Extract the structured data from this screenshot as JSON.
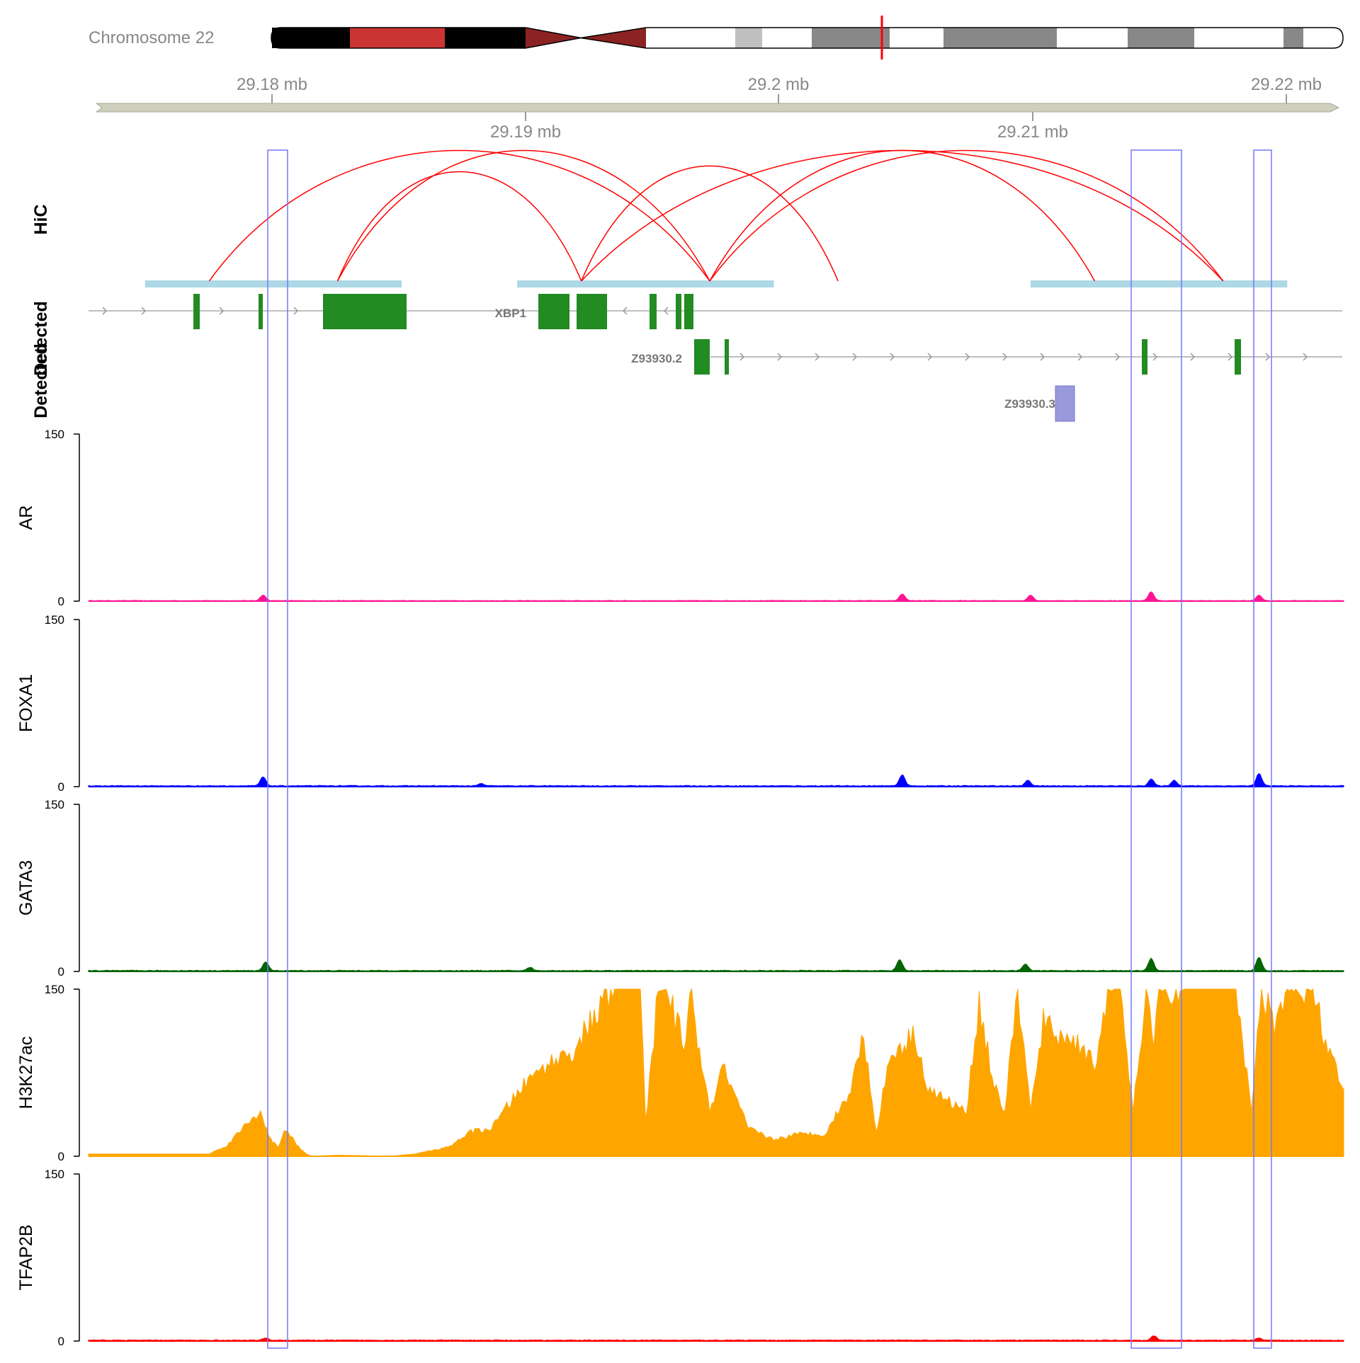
{
  "ideogram": {
    "label": "Chromosome 22",
    "colors": {
      "acen": "#8B2323",
      "gneg": "#ffffff",
      "gpos25": "#c0c0c0",
      "gpos50": "#888888",
      "gvar": "#000000",
      "stalk": "#cc3333",
      "marker": "#ff0000"
    }
  },
  "axis": {
    "top_ticks": [
      "29.18 mb",
      "29.2 mb",
      "29.22 mb"
    ],
    "bottom_ticks": [
      "29.19 mb",
      "29.21 mb"
    ],
    "top_tick_values": [
      29.18,
      29.2,
      29.22
    ],
    "bottom_tick_values": [
      29.19,
      29.21
    ],
    "range_mb": [
      29.1733,
      29.2222
    ],
    "color": "#c8c8b4"
  },
  "tracks": {
    "hic_label": "HiC",
    "genes_label": "Detected",
    "genes_label_overlap": "Detected",
    "genes": [
      {
        "name": "XBP1",
        "strand": "-",
        "color": "#228B22"
      },
      {
        "name": "Z93930.2",
        "strand": "+",
        "color": "#228B22"
      },
      {
        "name": "Z93930.3",
        "strand": "+",
        "color": "#9999dd"
      }
    ]
  },
  "chart_data": [
    {
      "type": "arc",
      "title": "HiC",
      "anchors_mb": [
        [
          29.1755,
          29.1855
        ],
        [
          29.19,
          29.2
        ],
        [
          29.21,
          29.22
        ]
      ],
      "links_mb": [
        [
          29.178,
          29.1975
        ],
        [
          29.183,
          29.1925
        ],
        [
          29.183,
          29.1975
        ],
        [
          29.1925,
          29.2025
        ],
        [
          29.1975,
          29.2125
        ],
        [
          29.1975,
          29.2175
        ],
        [
          29.1925,
          29.2175
        ]
      ],
      "arc_color": "#ff0000",
      "anchor_color": "#add8e6"
    },
    {
      "type": "area",
      "title": "AR",
      "ylim": [
        0,
        150
      ],
      "yticks": [
        0,
        150
      ],
      "color": "#ff1493",
      "baseline": 0.5,
      "peaks": [
        {
          "x": 29.1801,
          "y": 5
        },
        {
          "x": 29.205,
          "y": 6
        },
        {
          "x": 29.21,
          "y": 5
        },
        {
          "x": 29.2147,
          "y": 8
        },
        {
          "x": 29.2189,
          "y": 5
        }
      ]
    },
    {
      "type": "area",
      "title": "FOXA1",
      "ylim": [
        0,
        150
      ],
      "yticks": [
        0,
        150
      ],
      "color": "#0000ff",
      "baseline": 0.8,
      "peaks": [
        {
          "x": 29.1801,
          "y": 8
        },
        {
          "x": 29.1886,
          "y": 2
        },
        {
          "x": 29.205,
          "y": 10
        },
        {
          "x": 29.2099,
          "y": 5
        },
        {
          "x": 29.2147,
          "y": 6
        },
        {
          "x": 29.2156,
          "y": 5
        },
        {
          "x": 29.2189,
          "y": 11
        }
      ]
    },
    {
      "type": "area",
      "title": "GATA3",
      "ylim": [
        0,
        150
      ],
      "yticks": [
        0,
        150
      ],
      "color": "#006400",
      "baseline": 0.8,
      "peaks": [
        {
          "x": 29.1802,
          "y": 8
        },
        {
          "x": 29.1905,
          "y": 3
        },
        {
          "x": 29.2049,
          "y": 10
        },
        {
          "x": 29.2098,
          "y": 6
        },
        {
          "x": 29.2147,
          "y": 11
        },
        {
          "x": 29.2189,
          "y": 12
        }
      ]
    },
    {
      "type": "area",
      "title": "H3K27ac",
      "ylim": [
        0,
        150
      ],
      "yticks": [
        0,
        150
      ],
      "color": "#ffa500",
      "x": [
        29.1733,
        29.178,
        29.1787,
        29.1795,
        29.18,
        29.1804,
        29.1807,
        29.181,
        29.1814,
        29.1818,
        29.182,
        29.183,
        29.185,
        29.186,
        29.1873,
        29.1882,
        29.189,
        29.1901,
        29.191,
        29.1922,
        29.193,
        29.1938,
        29.1948,
        29.195,
        29.1955,
        29.1958,
        29.1965,
        29.1968,
        29.1971,
        29.1975,
        29.198,
        29.199,
        29.2,
        29.201,
        29.202,
        29.203,
        29.2035,
        29.204,
        29.2045,
        29.205,
        29.2055,
        29.206,
        29.2075,
        29.208,
        29.2085,
        29.209,
        29.2095,
        29.21,
        29.2105,
        29.211,
        29.212,
        29.2125,
        29.213,
        29.2135,
        29.214,
        29.2145,
        29.2148,
        29.215,
        29.2155,
        29.216,
        29.217,
        29.218,
        29.2186,
        29.219,
        29.2195,
        29.22,
        29.2205,
        29.221,
        29.2215,
        29.222,
        29.2222
      ],
      "y": [
        2,
        2,
        10,
        30,
        40,
        15,
        8,
        25,
        10,
        2,
        0,
        1,
        0,
        2,
        8,
        22,
        25,
        60,
        80,
        95,
        125,
        150,
        150,
        30,
        148,
        150,
        100,
        150,
        90,
        40,
        80,
        25,
        15,
        20,
        20,
        60,
        110,
        20,
        90,
        100,
        110,
        60,
        40,
        140,
        70,
        40,
        150,
        40,
        120,
        110,
        100,
        80,
        150,
        145,
        40,
        150,
        90,
        150,
        145,
        150,
        150,
        150,
        40,
        150,
        120,
        150,
        140,
        150,
        100,
        70,
        60
      ]
    },
    {
      "type": "area",
      "title": "TFAP2B",
      "ylim": [
        0,
        150
      ],
      "yticks": [
        0,
        150
      ],
      "color": "#ff0000",
      "baseline": 0.8,
      "peaks": [
        {
          "x": 29.1802,
          "y": 2
        },
        {
          "x": 29.2148,
          "y": 4
        },
        {
          "x": 29.2189,
          "y": 2
        }
      ]
    }
  ]
}
